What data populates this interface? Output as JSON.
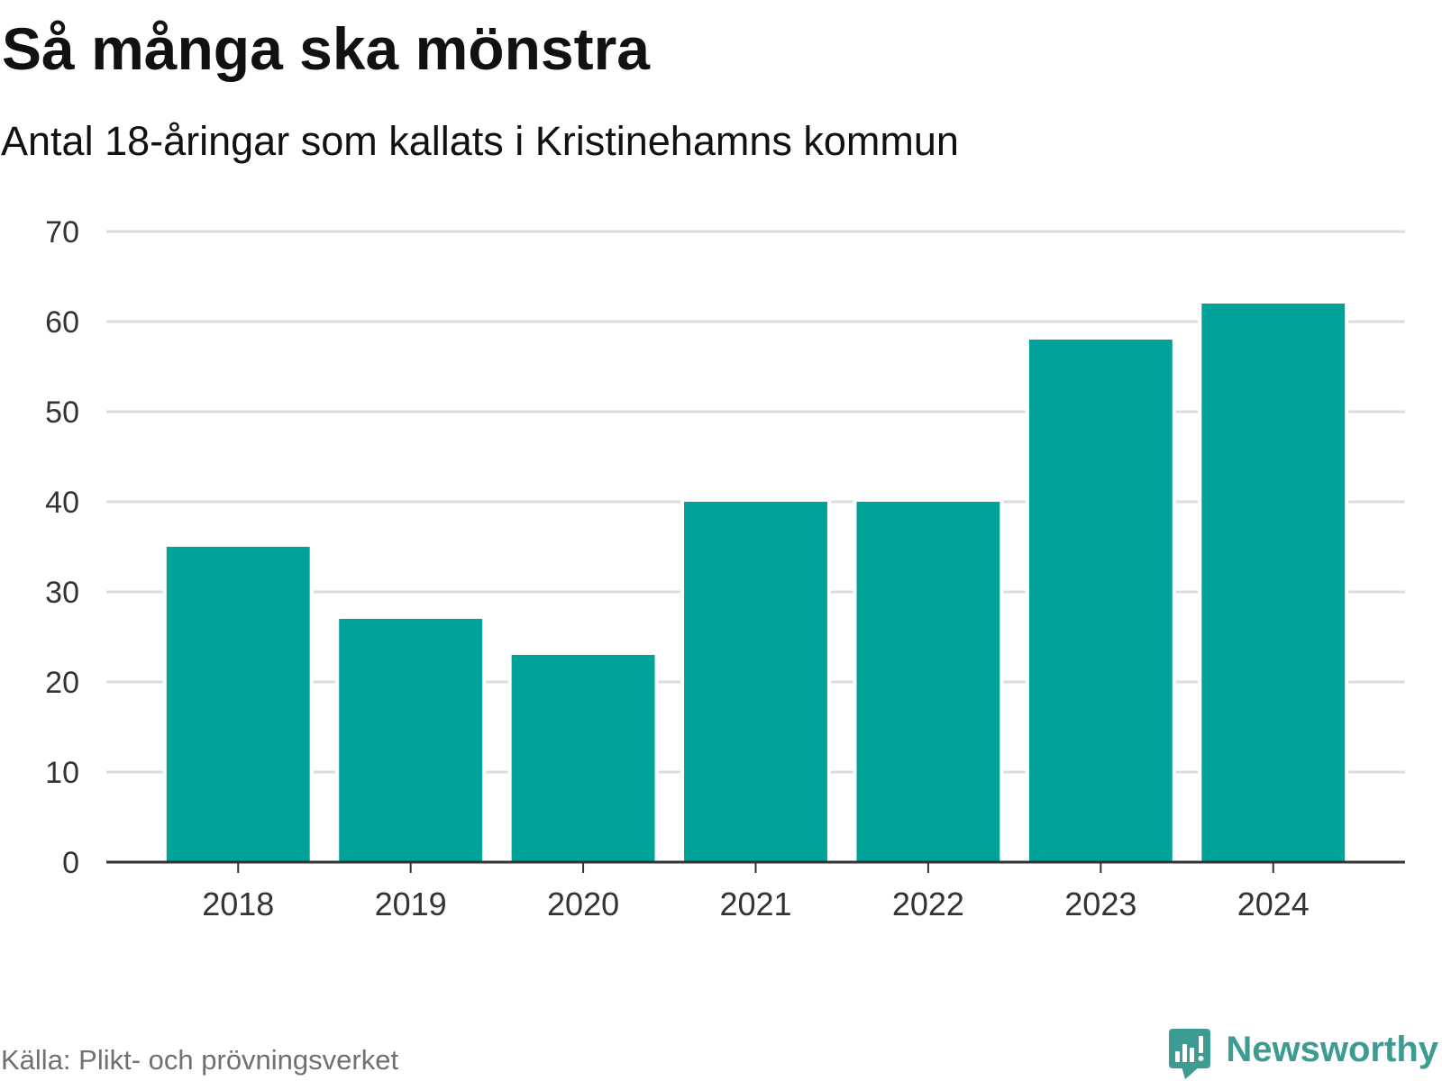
{
  "source": "Källa: Plikt- och prövningsverket",
  "brand": {
    "name": "Newsworthy",
    "icon": "newsworthy-logo-icon",
    "color": "#3d9c91"
  },
  "colors": {
    "bar": "#00a39a",
    "grid": "#dcdcdc",
    "axis": "#333333"
  },
  "chart_data": {
    "type": "bar",
    "title": "Så många ska mönstra",
    "subtitle": "Antal 18-åringar som kallats i Kristinehamns kommun",
    "categories": [
      "2018",
      "2019",
      "2020",
      "2021",
      "2022",
      "2023",
      "2024"
    ],
    "values": [
      35,
      27,
      23,
      40,
      40,
      58,
      62
    ],
    "xlabel": "",
    "ylabel": "",
    "ylim": [
      0,
      70
    ],
    "yticks": [
      0,
      10,
      20,
      30,
      40,
      50,
      60,
      70
    ],
    "grid": true,
    "legend": "none"
  }
}
